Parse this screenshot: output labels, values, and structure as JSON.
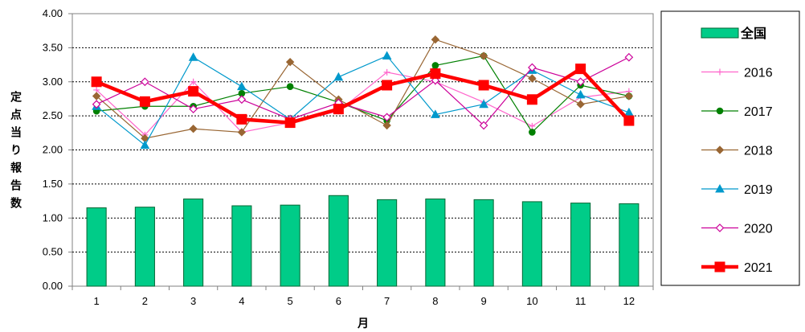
{
  "chart_data": {
    "type": "bar+line",
    "title": "",
    "xlabel": "月",
    "ylabel": "定点当り報告数",
    "ylim": [
      0,
      4
    ],
    "y_ticks": [
      "0.00",
      "0.50",
      "1.00",
      "1.50",
      "2.00",
      "2.50",
      "3.00",
      "3.50",
      "4.00"
    ],
    "categories": [
      "1",
      "2",
      "3",
      "4",
      "5",
      "6",
      "7",
      "8",
      "9",
      "10",
      "11",
      "12"
    ],
    "grid": "horizontal dotted",
    "legend_position": "right",
    "bars": {
      "name": "全国",
      "color": "#00CC88",
      "values": [
        1.15,
        1.16,
        1.28,
        1.18,
        1.19,
        1.33,
        1.27,
        1.28,
        1.27,
        1.24,
        1.22,
        1.21
      ]
    },
    "series": [
      {
        "name": "2016",
        "color": "#FF66CC",
        "marker": "plus",
        "values": [
          2.88,
          2.22,
          3.0,
          2.26,
          2.4,
          2.57,
          3.14,
          3.0,
          2.7,
          2.35,
          2.77,
          2.86
        ]
      },
      {
        "name": "2017",
        "color": "#008000",
        "marker": "circle",
        "values": [
          2.57,
          2.64,
          2.64,
          2.83,
          2.93,
          2.7,
          2.43,
          3.24,
          3.38,
          2.26,
          2.95,
          2.79
        ]
      },
      {
        "name": "2018",
        "color": "#996633",
        "marker": "diamond",
        "values": [
          2.79,
          2.17,
          2.31,
          2.26,
          3.29,
          2.74,
          2.36,
          3.62,
          3.38,
          3.05,
          2.67,
          2.79
        ]
      },
      {
        "name": "2019",
        "color": "#0099CC",
        "marker": "triangle",
        "values": [
          2.64,
          2.07,
          3.36,
          2.93,
          2.45,
          3.07,
          3.38,
          2.52,
          2.67,
          3.17,
          2.81,
          2.55
        ]
      },
      {
        "name": "2020",
        "color": "#CC0099",
        "marker": "open-diamond",
        "values": [
          2.67,
          3.0,
          2.6,
          2.74,
          2.45,
          2.69,
          2.48,
          3.02,
          2.36,
          3.21,
          3.0,
          3.36
        ]
      },
      {
        "name": "2021",
        "color": "#FF0000",
        "marker": "square",
        "values": [
          3.0,
          2.71,
          2.86,
          2.45,
          2.4,
          2.6,
          2.95,
          3.12,
          2.95,
          2.74,
          3.19,
          2.43
        ]
      }
    ]
  }
}
